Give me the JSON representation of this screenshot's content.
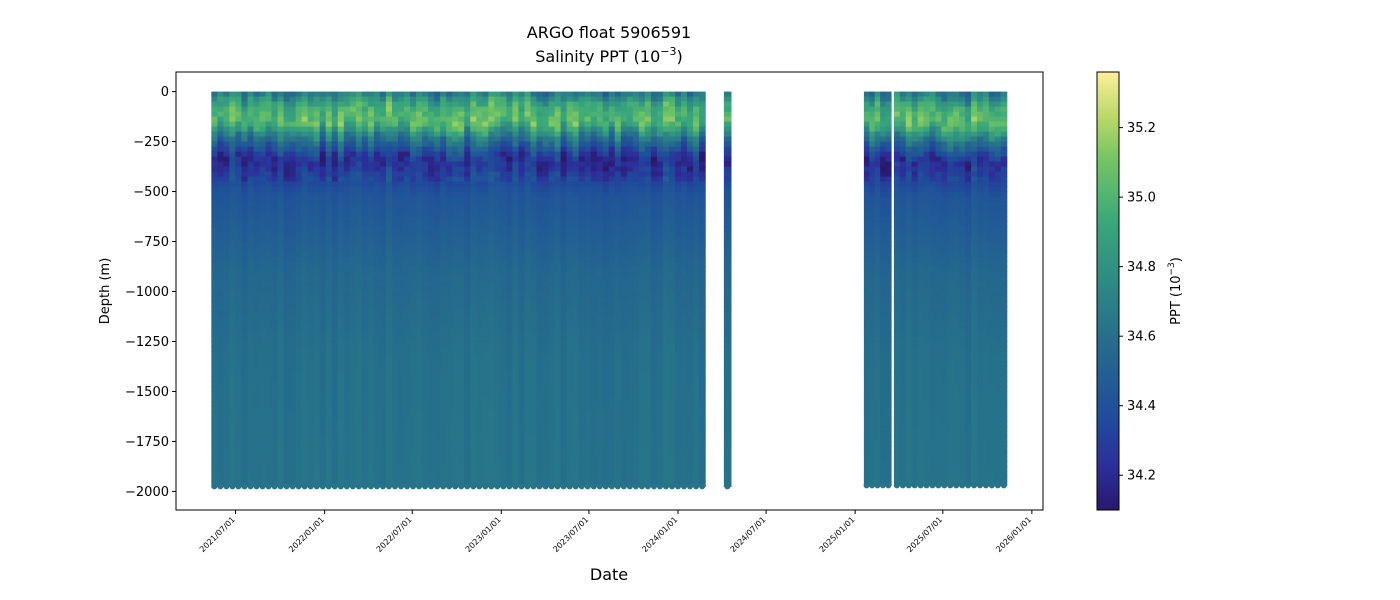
{
  "chart_data": {
    "type": "heatmap",
    "title_line1": "ARGO float 5906591",
    "title_line2_prefix": "Salinity PPT (10",
    "title_line2_exp": "−3",
    "title_line2_suffix": ")",
    "xlabel": "Date",
    "ylabel": "Depth (m)",
    "colorbar_label_prefix": "PPT (10",
    "colorbar_label_exp": "−3",
    "colorbar_label_suffix": ")",
    "colormap": "haline",
    "x_ticks": [
      "2021/07/01",
      "2022/01/01",
      "2022/07/01",
      "2023/01/01",
      "2023/07/01",
      "2024/01/01",
      "2024/07/01",
      "2025/01/01",
      "2025/07/01",
      "2026/01/01"
    ],
    "xlim": [
      "2021/02/28",
      "2026/01/24"
    ],
    "y_ticks": [
      0,
      -250,
      -500,
      -750,
      -1000,
      -1250,
      -1500,
      -1750,
      -2000
    ],
    "y_tick_labels": [
      "0",
      "−250",
      "−500",
      "−750",
      "−1000",
      "−1250",
      "−1500",
      "−1750",
      "−2000"
    ],
    "ylim": [
      -2093,
      98
    ],
    "colorbar": {
      "vmin": 34.1,
      "vmax": 35.36,
      "ticks": [
        34.2,
        34.4,
        34.6,
        34.8,
        35.0,
        35.2
      ],
      "tick_labels": [
        "34.2",
        "34.4",
        "34.6",
        "34.8",
        "35.0",
        "35.2"
      ]
    },
    "segments": [
      {
        "start": "2021/05/12",
        "end": "2024/02/26",
        "max_depth": -1975
      },
      {
        "start": "2024/04/12",
        "end": "2024/04/12",
        "max_depth": -1975
      },
      {
        "start": "2025/01/19",
        "end": "2025/03/16",
        "max_depth": -1970
      },
      {
        "start": "2025/03/22",
        "end": "2025/11/10",
        "max_depth": -1970
      }
    ],
    "salinity_profile": [
      {
        "depth": 0,
        "salinity": 34.68
      },
      {
        "depth": -60,
        "salinity": 34.95
      },
      {
        "depth": -140,
        "salinity": 35.05
      },
      {
        "depth": -230,
        "salinity": 34.6
      },
      {
        "depth": -330,
        "salinity": 34.2
      },
      {
        "depth": -500,
        "salinity": 34.42
      },
      {
        "depth": -900,
        "salinity": 34.55
      },
      {
        "depth": -1300,
        "salinity": 34.6
      },
      {
        "depth": -2000,
        "salinity": 34.62
      }
    ]
  }
}
